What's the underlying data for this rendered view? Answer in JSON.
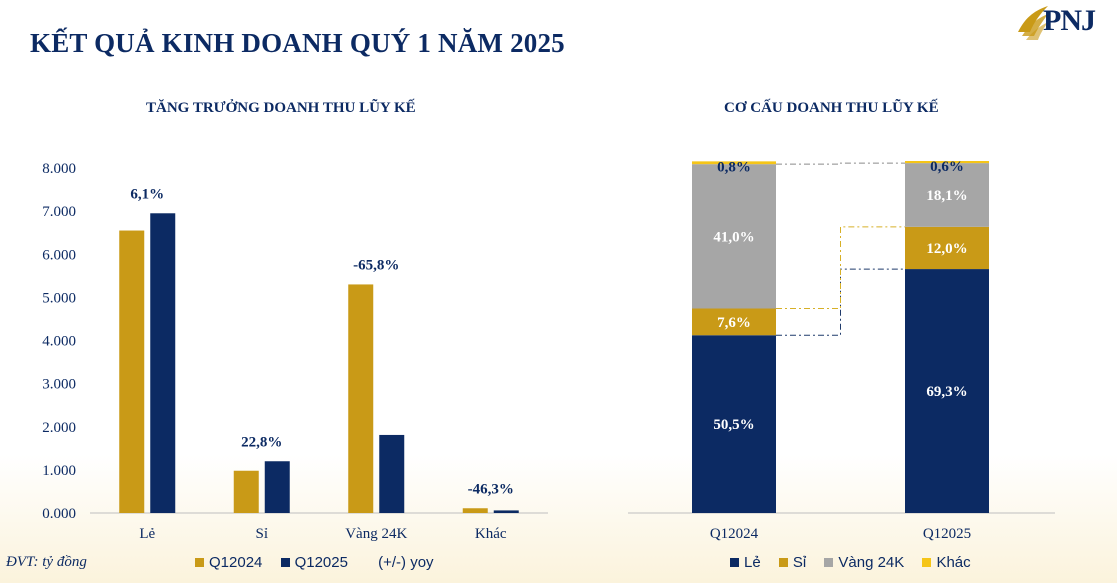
{
  "header": {
    "title": "KẾT QUẢ KINH DOANH QUÝ 1 NĂM 2025",
    "logo_text": "PNJ"
  },
  "unit_note": "ĐVT: tỷ đồng",
  "colors": {
    "gold": "#c99a17",
    "navy": "#0c2a63",
    "gray": "#a6a6a6",
    "yellow": "#f5c518"
  },
  "chart_data": [
    {
      "type": "bar",
      "title": "TĂNG TRƯỞNG DOANH THU LŨY KẾ",
      "categories": [
        "Lẻ",
        "Sỉ",
        "Vàng 24K",
        "Khác"
      ],
      "series": [
        {
          "name": "Q12024",
          "values": [
            6550,
            980,
            5300,
            110
          ]
        },
        {
          "name": "Q12025",
          "values": [
            6950,
            1200,
            1810,
            60
          ]
        }
      ],
      "annotations": [
        "6,1%",
        "22,8%",
        "-65,8%",
        "-46,3%"
      ],
      "annotation_label": "(+/-) yoy",
      "yticks": [
        "0.000",
        "1.000",
        "2.000",
        "3.000",
        "4.000",
        "5.000",
        "6.000",
        "7.000",
        "8.000"
      ],
      "ylim": [
        0,
        8000
      ],
      "legend": "bottom"
    },
    {
      "type": "bar",
      "stacked": true,
      "title": "CƠ CẤU DOANH THU LŨY KẾ",
      "categories": [
        "Q12024",
        "Q12025"
      ],
      "series": [
        {
          "name": "Lẻ",
          "values": [
            50.5,
            69.3
          ],
          "labels": [
            "50,5%",
            "69,3%"
          ]
        },
        {
          "name": "Sỉ",
          "values": [
            7.6,
            12.0
          ],
          "labels": [
            "7,6%",
            "12,0%"
          ]
        },
        {
          "name": "Vàng 24K",
          "values": [
            41.0,
            18.1
          ],
          "labels": [
            "41,0%",
            "18,1%"
          ]
        },
        {
          "name": "Khác",
          "values": [
            0.8,
            0.6
          ],
          "labels": [
            "0,8%",
            "0,6%"
          ]
        }
      ],
      "ylim": [
        0,
        100
      ],
      "legend": "bottom"
    }
  ]
}
